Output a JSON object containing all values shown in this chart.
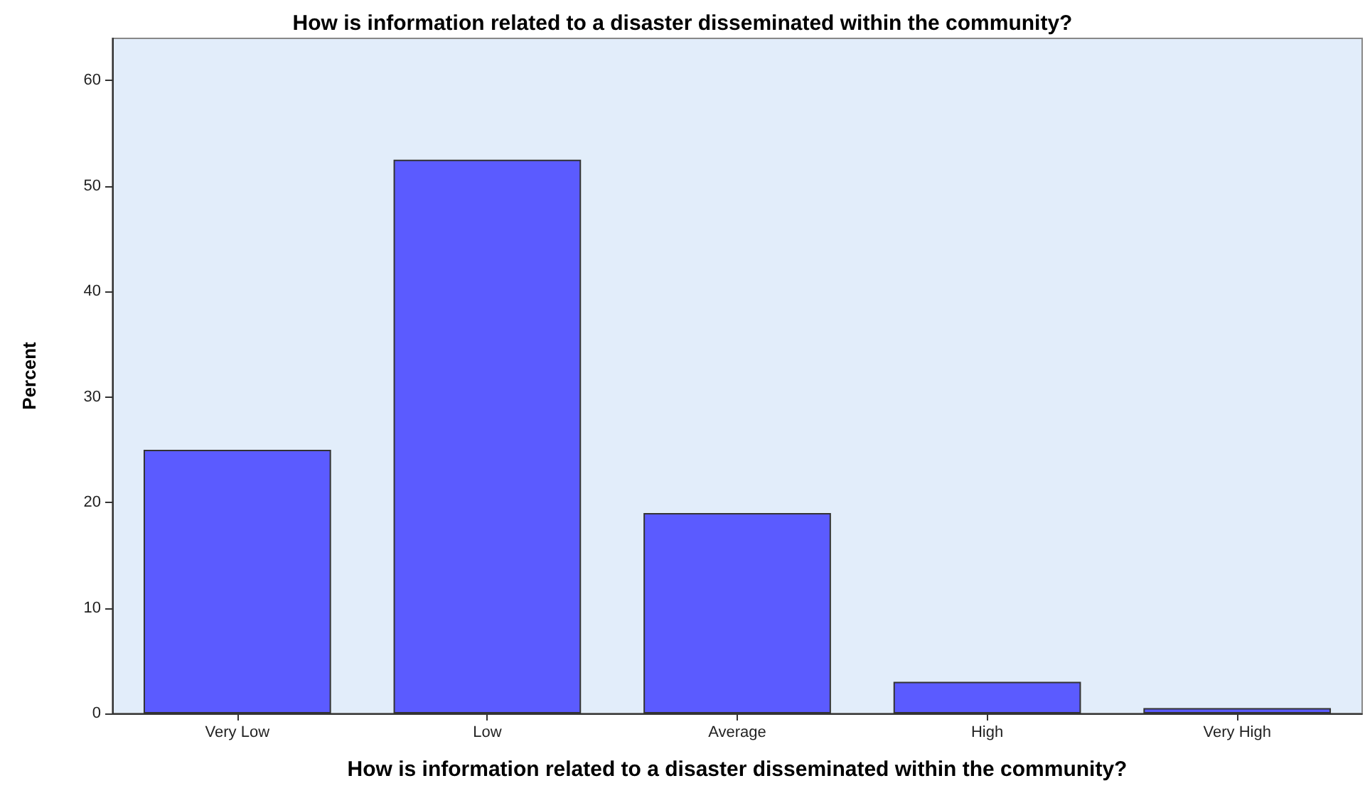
{
  "chart_data": {
    "type": "bar",
    "title": "How is information related to a disaster disseminated within the community?",
    "xlabel": "How is information related to a disaster disseminated within the community?",
    "ylabel": "Percent",
    "categories": [
      "Very Low",
      "Low",
      "Average",
      "High",
      "Very High"
    ],
    "values": [
      25,
      52.5,
      19,
      3,
      0.5
    ],
    "color": "#5b5bff",
    "ylim": [
      0,
      64
    ],
    "yticks": [
      0,
      10,
      20,
      30,
      40,
      50,
      60
    ],
    "grid": false
  }
}
